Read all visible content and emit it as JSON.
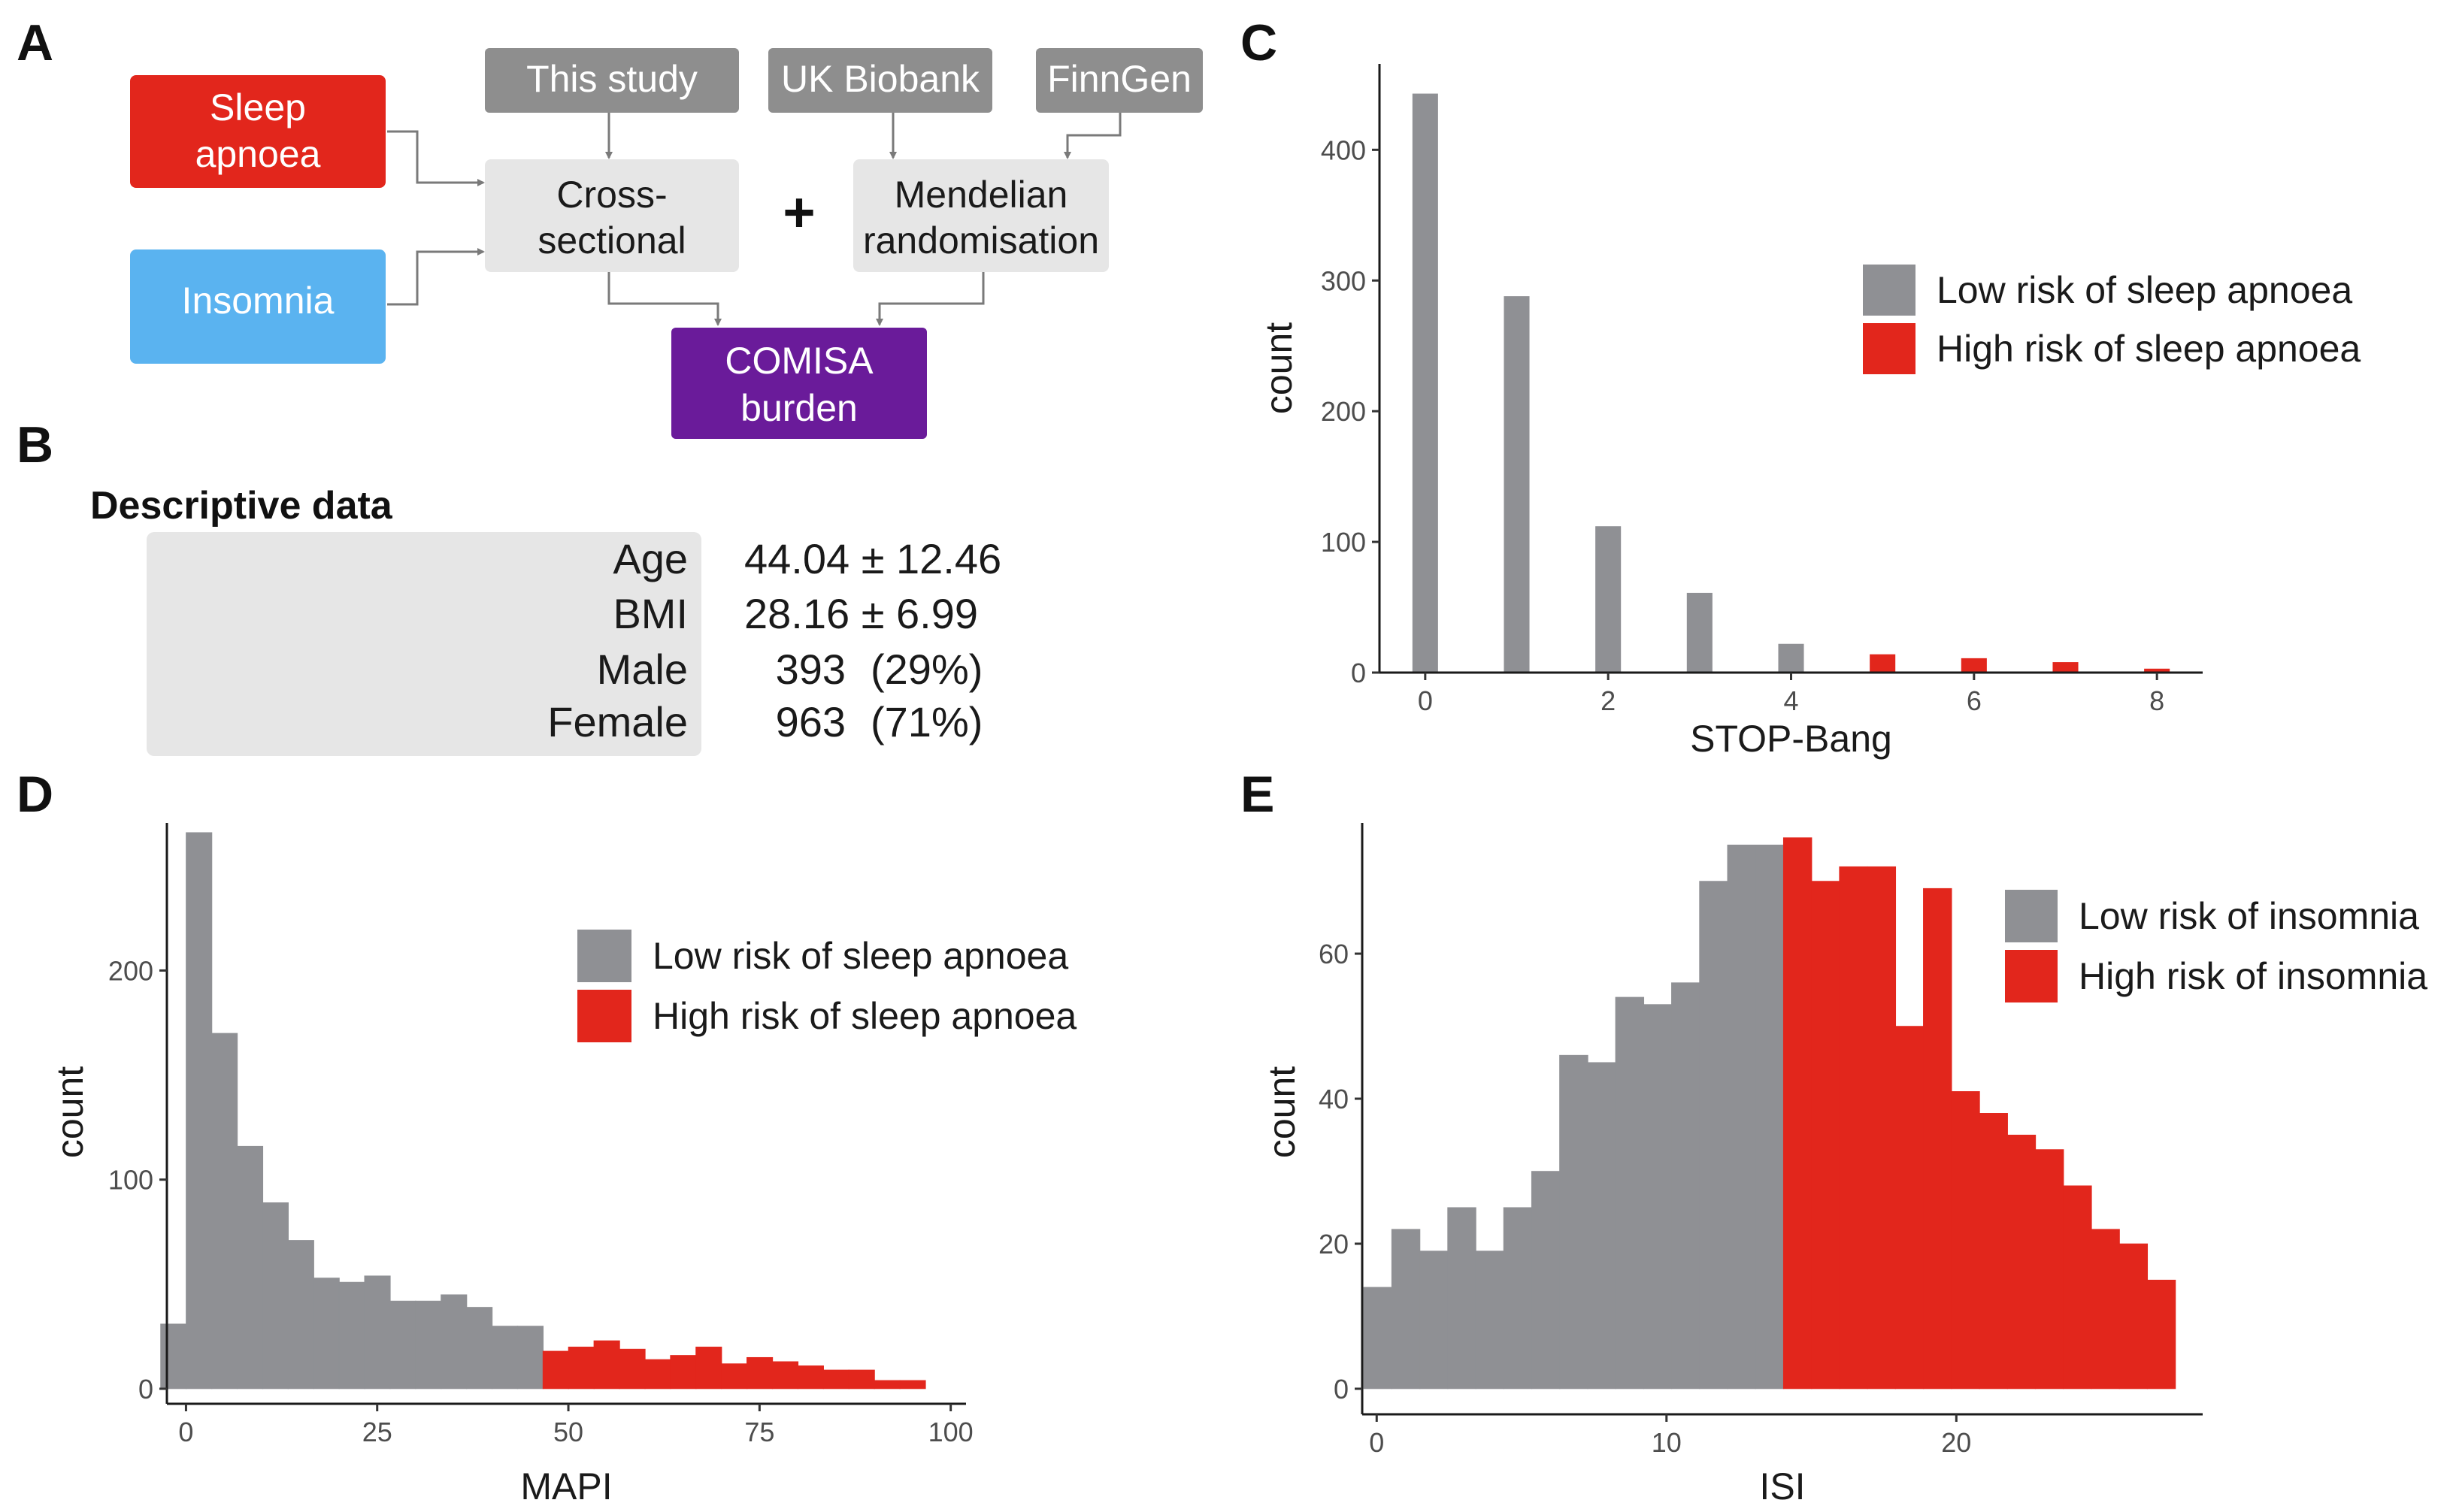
{
  "colors": {
    "low": "#8f9094",
    "high": "#e2261c",
    "apnoea_box": "#e2261c",
    "insomnia_box": "#5ab3f0",
    "source_box": "#8e8e8e",
    "method_box": "#e6e6e6",
    "comisa_box": "#6a1b9a"
  },
  "panel_a": {
    "letter": "A",
    "sleep_apnoea": [
      "Sleep",
      "apnoea"
    ],
    "insomnia": "Insomnia",
    "this_study": "This study",
    "uk_biobank": "UK Biobank",
    "finngen": "FinnGen",
    "cross_sectional": [
      "Cross-",
      "sectional"
    ],
    "plus": "+",
    "mendelian": [
      "Mendelian",
      "randomisation"
    ],
    "comisa": [
      "COMISA",
      "burden"
    ]
  },
  "panel_b": {
    "letter": "B",
    "title": "Descriptive data",
    "rows": [
      {
        "label": "Age",
        "value": "44.04 ± 12.46",
        "pct": ""
      },
      {
        "label": "BMI",
        "value": "28.16 ± 6.99",
        "pct": ""
      },
      {
        "label": "Male",
        "value": "393",
        "pct": "(29%)"
      },
      {
        "label": "Female",
        "value": "963",
        "pct": "(71%)"
      }
    ]
  },
  "chart_data": [
    {
      "panel": "C",
      "letter": "C",
      "type": "bar",
      "xlabel": "STOP-Bang",
      "ylabel": "count",
      "xlim": [
        -0.5,
        8.5
      ],
      "ylim": [
        0,
        460
      ],
      "xticks": [
        0,
        2,
        4,
        6,
        8
      ],
      "yticks": [
        0,
        100,
        200,
        300,
        400
      ],
      "bar_width": 0.28,
      "x": [
        0,
        1,
        2,
        3,
        4,
        5,
        6,
        7,
        8
      ],
      "values": [
        443,
        288,
        112,
        61,
        22,
        14,
        11,
        8,
        3
      ],
      "risk": [
        "low",
        "low",
        "low",
        "low",
        "low",
        "high",
        "high",
        "high",
        "high"
      ],
      "legend": [
        "Low risk of sleep apnoea",
        "High risk of sleep apnoea"
      ],
      "legend_position": "right"
    },
    {
      "panel": "D",
      "letter": "D",
      "type": "histogram",
      "xlabel": "MAPI",
      "ylabel": "count",
      "xlim": [
        -2.5,
        102
      ],
      "ylim": [
        0,
        267
      ],
      "xticks": [
        0,
        25,
        50,
        75,
        100
      ],
      "yticks": [
        0,
        100,
        200
      ],
      "bin_start": -3.33,
      "bin_width": 3.333,
      "values": [
        31,
        266,
        170,
        116,
        89,
        71,
        53,
        51,
        54,
        42,
        42,
        45,
        39,
        30,
        30,
        18,
        20,
        23,
        19,
        14,
        16,
        20,
        12,
        15,
        13,
        11,
        9,
        9,
        4,
        4
      ],
      "risk": [
        "low",
        "low",
        "low",
        "low",
        "low",
        "low",
        "low",
        "low",
        "low",
        "low",
        "low",
        "low",
        "low",
        "low",
        "low",
        "high",
        "high",
        "high",
        "high",
        "high",
        "high",
        "high",
        "high",
        "high",
        "high",
        "high",
        "high",
        "high",
        "high",
        "high"
      ],
      "legend": [
        "Low risk of sleep apnoea",
        "High risk of sleep apnoea"
      ],
      "legend_position": "top-right"
    },
    {
      "panel": "E",
      "letter": "E",
      "type": "histogram",
      "xlabel": "ISI",
      "ylabel": "count",
      "xlim": [
        -0.5,
        28.5
      ],
      "ylim": [
        0,
        77
      ],
      "xticks": [
        0,
        10,
        20
      ],
      "yticks": [
        0,
        20,
        40,
        60
      ],
      "bin_start": -0.45,
      "bin_width": 0.9655,
      "values": [
        14,
        22,
        19,
        25,
        19,
        25,
        30,
        46,
        45,
        54,
        53,
        56,
        70,
        75,
        75,
        76,
        70,
        72,
        72,
        50,
        69,
        41,
        38,
        35,
        33,
        28,
        22,
        20,
        15
      ],
      "risk": [
        "low",
        "low",
        "low",
        "low",
        "low",
        "low",
        "low",
        "low",
        "low",
        "low",
        "low",
        "low",
        "low",
        "low",
        "low",
        "high",
        "high",
        "high",
        "high",
        "high",
        "high",
        "high",
        "high",
        "high",
        "high",
        "high",
        "high",
        "high",
        "high"
      ],
      "legend": [
        "Low risk of insomnia",
        "High risk of insomnia"
      ],
      "legend_position": "top-right"
    }
  ]
}
